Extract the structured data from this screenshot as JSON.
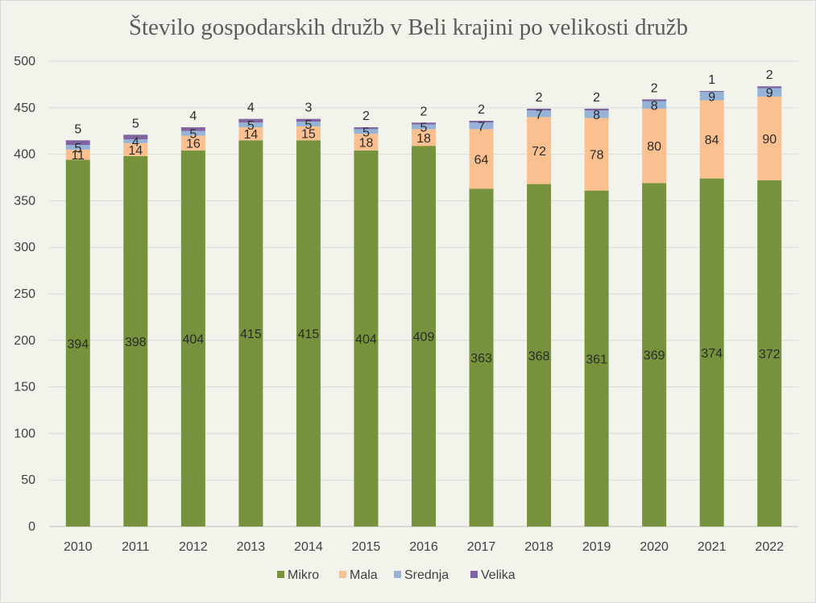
{
  "chart_data": {
    "type": "bar",
    "stacked": true,
    "title": "Število gospodarskih družb v Beli krajini po velikosti družb",
    "xlabel": "",
    "ylabel": "",
    "categories": [
      "2010",
      "2011",
      "2012",
      "2013",
      "2014",
      "2015",
      "2016",
      "2017",
      "2018",
      "2019",
      "2020",
      "2021",
      "2022"
    ],
    "ylim": [
      0,
      500
    ],
    "yticks": [
      0,
      50,
      100,
      150,
      200,
      250,
      300,
      350,
      400,
      450,
      500
    ],
    "grid": true,
    "legend_position": "bottom",
    "series": [
      {
        "name": "Mikro",
        "color": "#76923c",
        "values": [
          394,
          398,
          404,
          415,
          415,
          404,
          409,
          363,
          368,
          361,
          369,
          374,
          372
        ]
      },
      {
        "name": "Mala",
        "color": "#fac090",
        "values": [
          11,
          14,
          16,
          14,
          15,
          18,
          18,
          64,
          72,
          78,
          80,
          84,
          90
        ]
      },
      {
        "name": "Srednja",
        "color": "#95b3d7",
        "values": [
          5,
          4,
          5,
          5,
          5,
          5,
          5,
          7,
          7,
          8,
          8,
          9,
          9
        ]
      },
      {
        "name": "Velika",
        "color": "#8064a2",
        "values": [
          5,
          5,
          4,
          4,
          3,
          2,
          2,
          2,
          2,
          2,
          2,
          1,
          2
        ]
      }
    ]
  }
}
